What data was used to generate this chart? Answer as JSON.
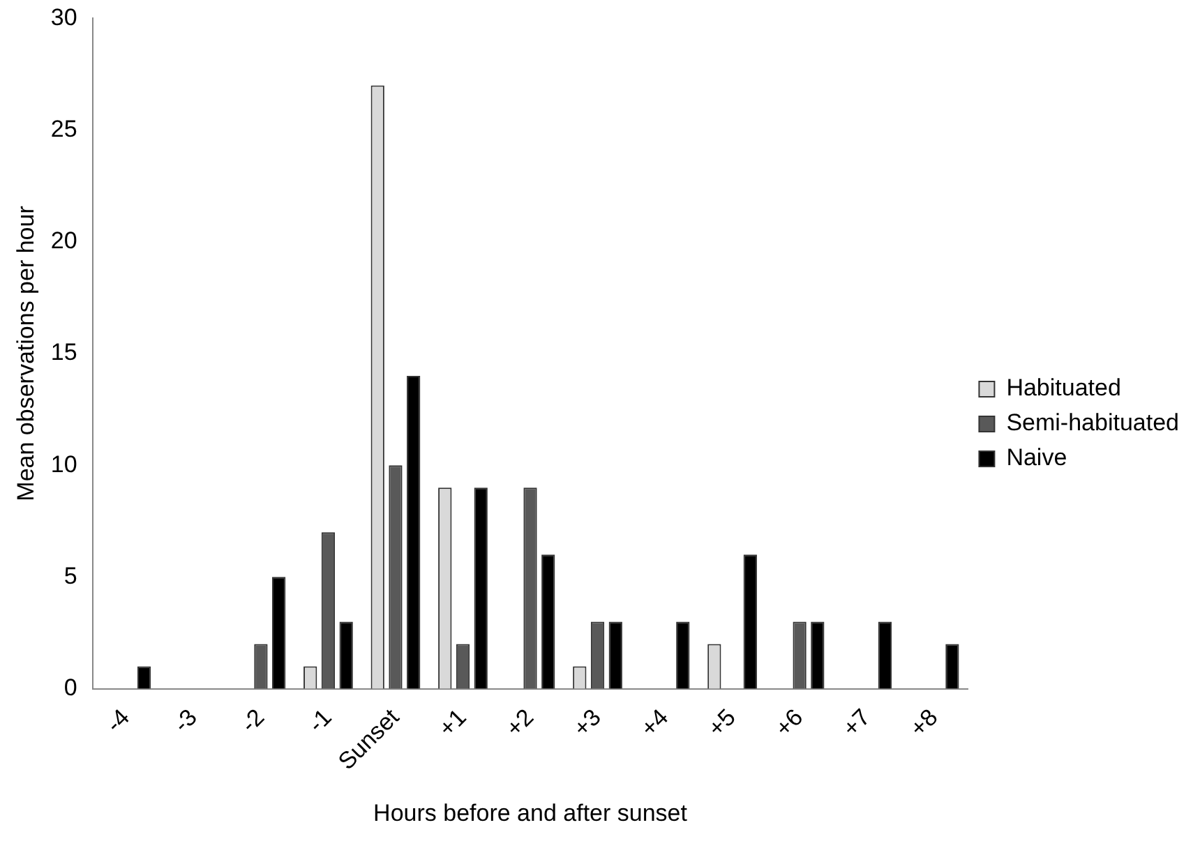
{
  "chart_data": {
    "type": "bar",
    "xlabel": "Hours before and after sunset",
    "ylabel": "Mean observations per hour",
    "categories": [
      "-4",
      "-3",
      "-2",
      "-1",
      "Sunset",
      "+1",
      "+2",
      "+3",
      "+4",
      "+5",
      "+6",
      "+7",
      "+8"
    ],
    "series": [
      {
        "name": "Habituated",
        "color": "#d9d9d9",
        "values": [
          0,
          0,
          0,
          1,
          27,
          9,
          0,
          1,
          0,
          2,
          0,
          0,
          0
        ]
      },
      {
        "name": "Semi-habituated",
        "color": "#595959",
        "values": [
          0,
          0,
          2,
          7,
          10,
          2,
          9,
          3,
          0,
          0,
          3,
          0,
          0
        ]
      },
      {
        "name": "Naive",
        "color": "#000000",
        "values": [
          1,
          0,
          5,
          3,
          14,
          9,
          6,
          3,
          3,
          6,
          3,
          3,
          2
        ]
      }
    ],
    "ylim": [
      0,
      30
    ],
    "yticks": [
      0,
      5,
      10,
      15,
      20,
      25,
      30
    ],
    "grid": false,
    "legend": "right"
  }
}
